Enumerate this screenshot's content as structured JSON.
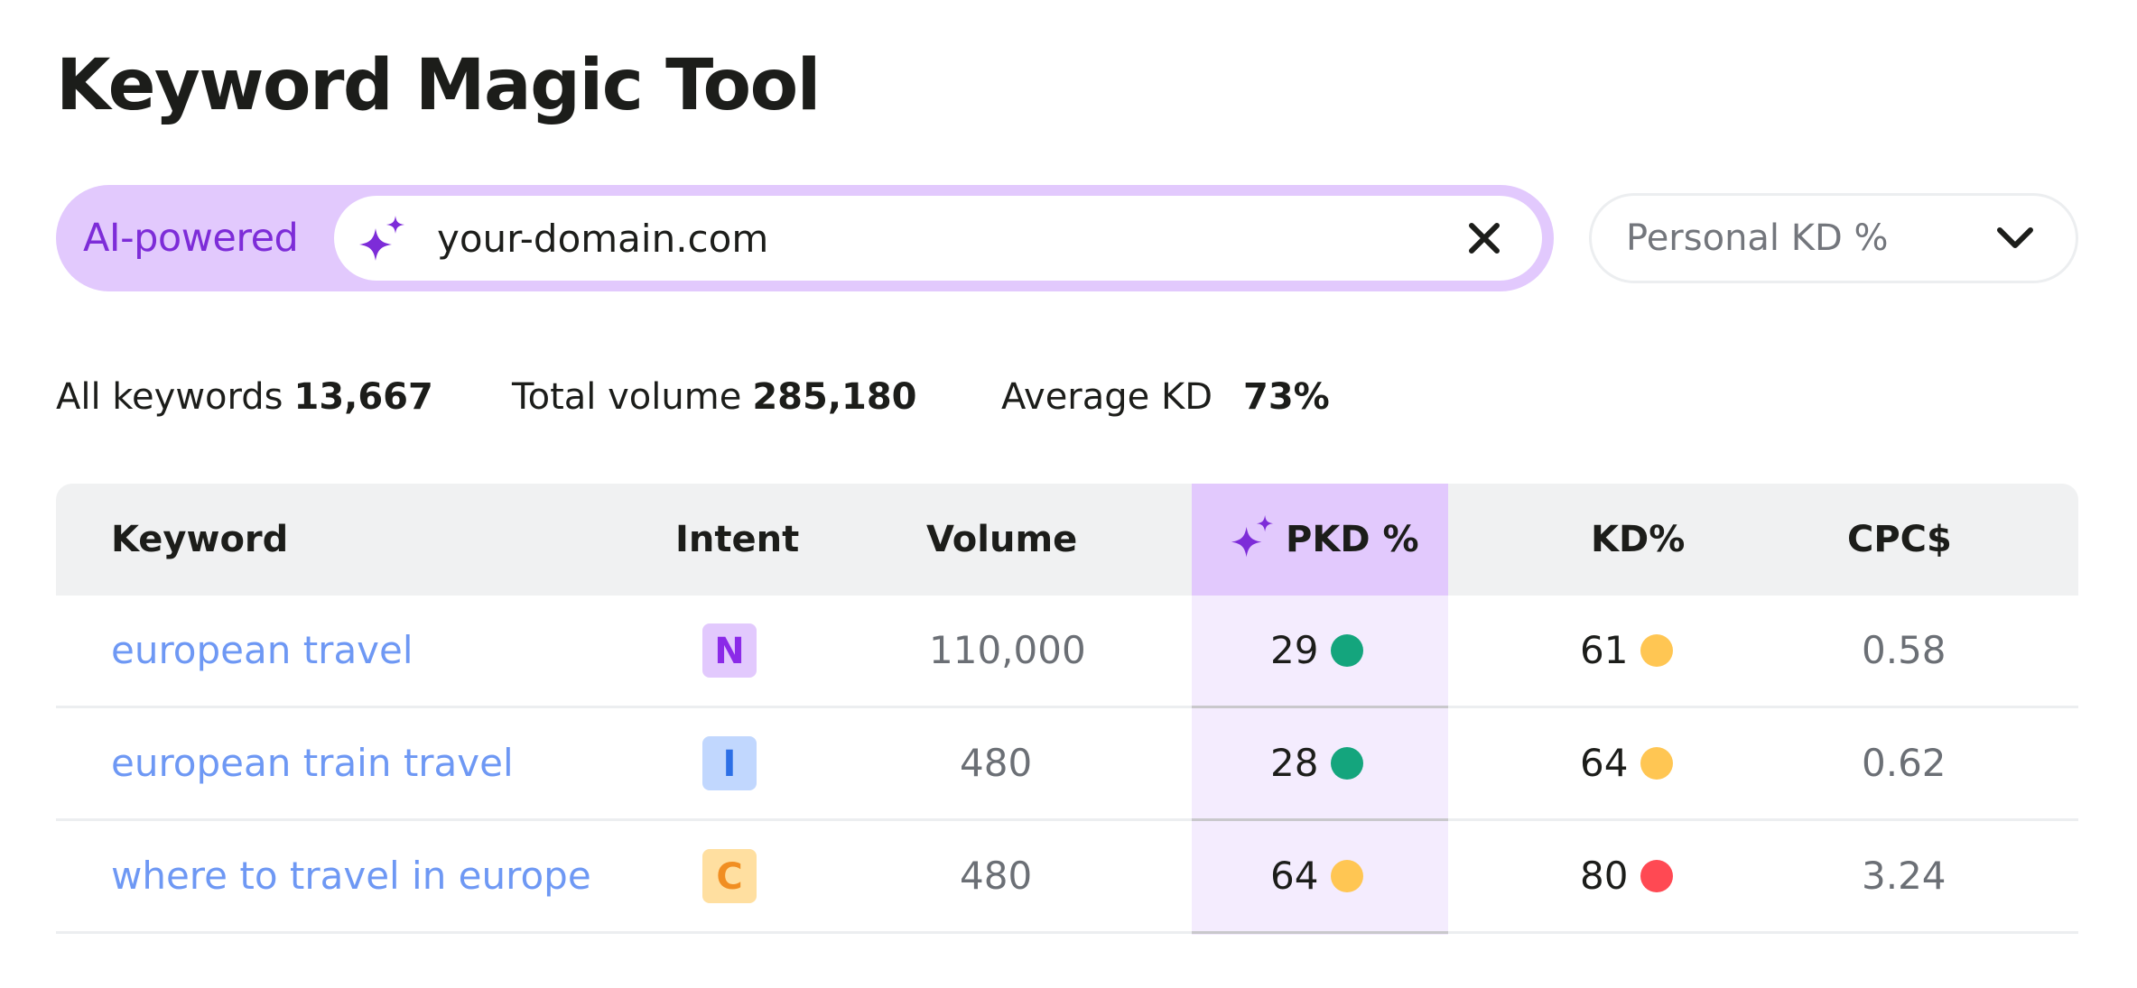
{
  "page": {
    "title": "Keyword Magic Tool"
  },
  "search": {
    "ai_label": "AI-powered",
    "value": "your-domain.com",
    "placeholder": "",
    "clear_icon": "close-icon",
    "sparkle_icon": "sparkle-icon"
  },
  "dropdown": {
    "selected": "Personal KD %",
    "icon": "chevron-down-icon"
  },
  "summary": {
    "all_keywords_label": "All keywords",
    "all_keywords_value": "13,667",
    "total_volume_label": "Total volume",
    "total_volume_value": "285,180",
    "average_kd_label": "Average KD",
    "average_kd_value": "73%"
  },
  "table": {
    "headers": {
      "keyword": "Keyword",
      "intent": "Intent",
      "volume": "Volume",
      "pkd": "PKD %",
      "kd": "KD%",
      "cpc": "CPC$"
    },
    "rows": [
      {
        "keyword": "european travel",
        "intent": "N",
        "volume": "110,000",
        "pkd": "29",
        "kd": "61",
        "cpc": "0.58"
      },
      {
        "keyword": "european train travel",
        "intent": "I",
        "volume": "480",
        "pkd": "28",
        "kd": "64",
        "cpc": "0.62"
      },
      {
        "keyword": "where to travel in europe",
        "intent": "C",
        "volume": "480",
        "pkd": "64",
        "kd": "80",
        "cpc": "3.24"
      }
    ]
  },
  "colors": {
    "accent_purple": "#7d2cd8",
    "ai_background": "#e2c9fd",
    "link_blue": "#6e98f4",
    "dot_green": "#14a57d",
    "dot_yellow": "#ffc653",
    "dot_red": "#ff4953",
    "intent_n_bg": "#e2c9fd",
    "intent_n_fg": "#8b2ae8",
    "intent_i_bg": "#c1d7fe",
    "intent_i_fg": "#2d6fe6",
    "intent_c_bg": "#ffdfa0",
    "intent_c_fg": "#f18e22"
  }
}
